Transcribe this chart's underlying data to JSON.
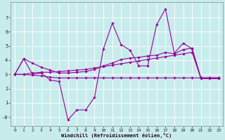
{
  "background_color": "#c8ecec",
  "grid_color": "#aad8d8",
  "line_color": "#990099",
  "xlabel": "Windchill (Refroidissement éolien,°C)",
  "xlim_min": -0.5,
  "xlim_max": 23.5,
  "ylim_min": -0.65,
  "ylim_max": 8.1,
  "ytick_vals": [
    0,
    1,
    2,
    3,
    4,
    5,
    6,
    7
  ],
  "ytick_labels": [
    "-0",
    "1",
    "2",
    "3",
    "4",
    "5",
    "6",
    "7"
  ],
  "xtick_vals": [
    0,
    1,
    2,
    3,
    4,
    5,
    6,
    7,
    8,
    9,
    10,
    11,
    12,
    13,
    14,
    15,
    16,
    17,
    18,
    19,
    20,
    21,
    22,
    23
  ],
  "x": [
    0,
    1,
    2,
    3,
    4,
    5,
    6,
    7,
    8,
    9,
    10,
    11,
    12,
    13,
    14,
    15,
    16,
    17,
    18,
    19,
    20,
    21,
    22,
    23
  ],
  "line_main": [
    3.0,
    4.1,
    3.0,
    3.1,
    2.6,
    2.5,
    -0.2,
    0.5,
    0.5,
    1.4,
    4.8,
    6.6,
    5.1,
    4.7,
    3.6,
    3.6,
    6.5,
    7.6,
    4.5,
    5.2,
    4.8,
    2.7,
    2.7,
    2.7
  ],
  "line_upper": [
    3.0,
    4.1,
    3.8,
    3.5,
    3.3,
    3.1,
    3.1,
    3.15,
    3.2,
    3.35,
    3.6,
    3.8,
    4.05,
    4.15,
    4.2,
    4.3,
    4.35,
    4.55,
    4.45,
    4.75,
    4.85,
    2.75,
    2.75,
    2.75
  ],
  "line_middle": [
    3.0,
    3.0,
    3.1,
    3.15,
    3.15,
    3.2,
    3.25,
    3.3,
    3.35,
    3.45,
    3.55,
    3.65,
    3.75,
    3.85,
    3.95,
    4.05,
    4.15,
    4.25,
    4.35,
    4.45,
    4.55,
    2.75,
    2.75,
    2.75
  ],
  "line_flat": [
    3.0,
    3.0,
    2.95,
    2.9,
    2.8,
    2.75,
    2.75,
    2.75,
    2.75,
    2.75,
    2.75,
    2.75,
    2.75,
    2.75,
    2.75,
    2.75,
    2.75,
    2.75,
    2.75,
    2.75,
    2.75,
    2.75,
    2.75,
    2.75
  ],
  "lw": 0.8,
  "ms": 1.8,
  "xlabel_fontsize": 5.0,
  "tick_fontsize": 4.5
}
